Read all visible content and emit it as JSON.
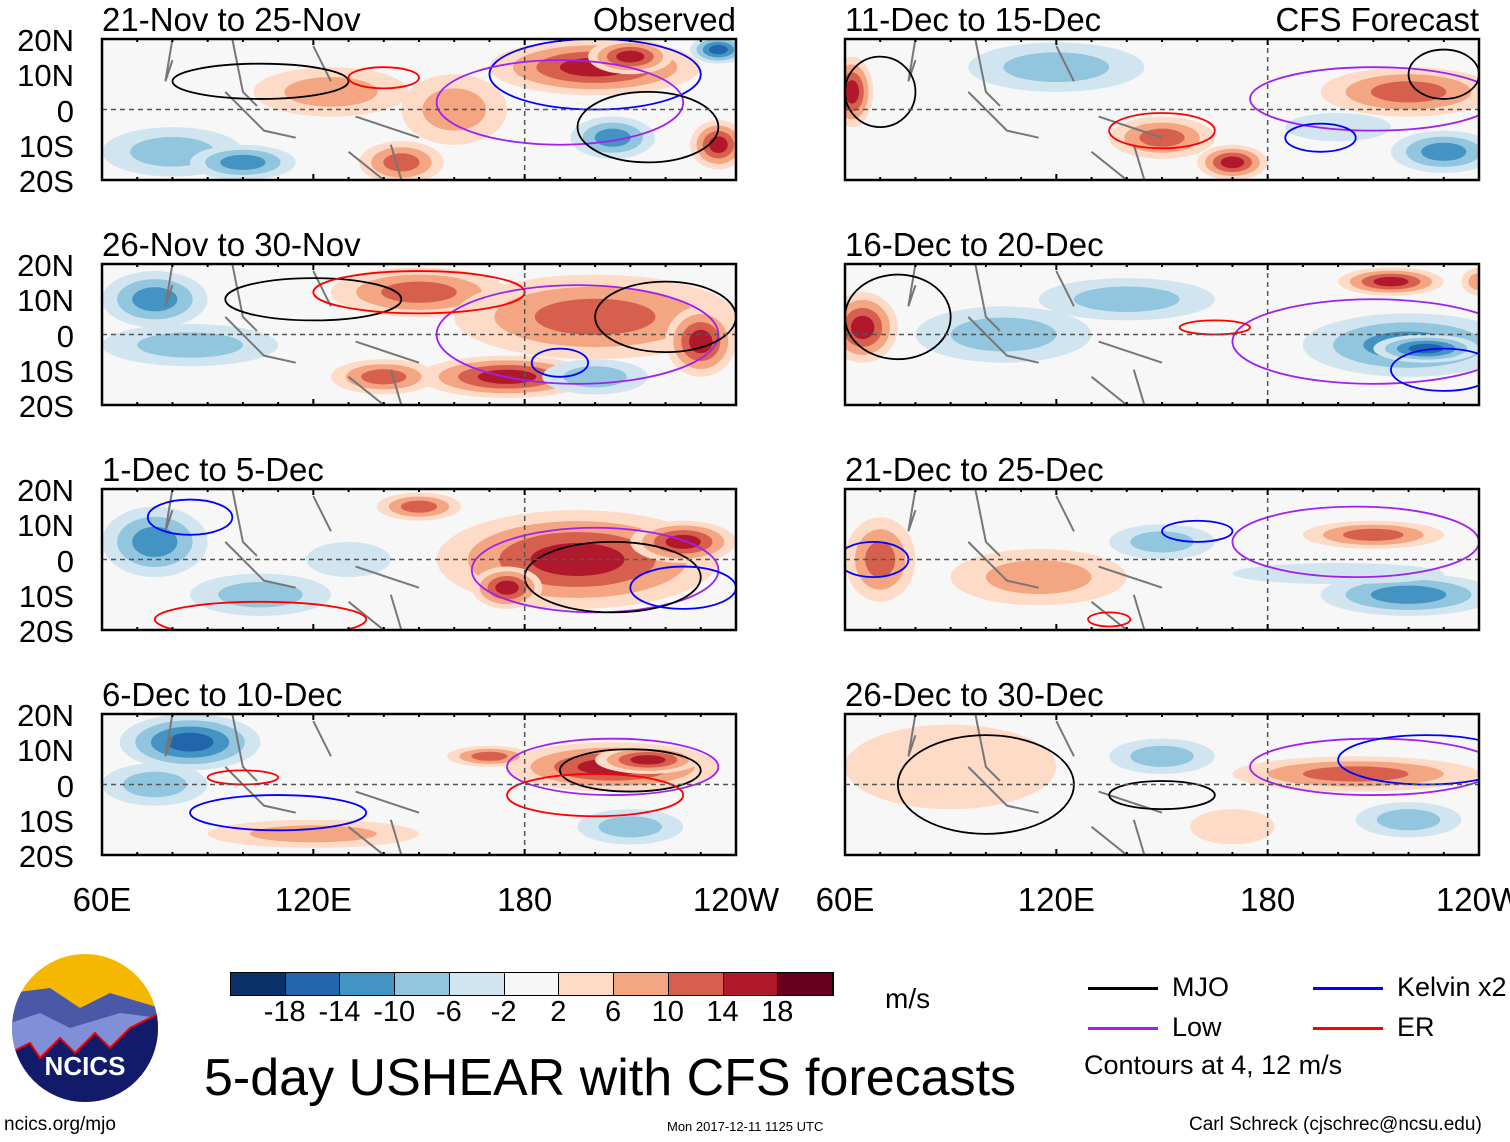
{
  "title": "5-day USHEAR with CFS forecasts",
  "observed_label": "Observed",
  "forecast_label": "CFS Forecast",
  "lat_labels": [
    "20N",
    "10N",
    "0",
    "10S",
    "20S"
  ],
  "lon_labels": [
    "60E",
    "120E",
    "180",
    "120W"
  ],
  "colorbar": {
    "colors": [
      "#0a3268",
      "#2166ac",
      "#4393c3",
      "#92c5de",
      "#d1e5f0",
      "#f7f7f7",
      "#fddbc7",
      "#f4a582",
      "#d6604d",
      "#b2182b",
      "#67001f"
    ],
    "labels": [
      "-18",
      "-14",
      "-10",
      "-6",
      "-2",
      "2",
      "6",
      "10",
      "14",
      "18"
    ],
    "units": "m/s"
  },
  "legend": {
    "items": [
      {
        "label": "MJO",
        "color": "#000000"
      },
      {
        "label": "Kelvin x2",
        "color": "#0000ff"
      },
      {
        "label": "Low",
        "color": "#a020f0"
      },
      {
        "label": "ER",
        "color": "#ff0000"
      }
    ],
    "note": "Contours at 4, 12 m/s"
  },
  "footer": {
    "left": "ncics.org/mjo",
    "center": "Mon 2017-12-11 1125 UTC",
    "right": "Carl Schreck (cjschrec@ncsu.edu)",
    "logo_text": "NCICS"
  },
  "panels": [
    {
      "title": "21-Nov to 25-Nov",
      "col": 0,
      "row": 0,
      "blobs": [
        [
          80,
          -12,
          20,
          7,
          -8
        ],
        [
          100,
          -15,
          15,
          5,
          -10
        ],
        [
          125,
          5,
          22,
          7,
          8
        ],
        [
          145,
          -15,
          12,
          6,
          10
        ],
        [
          200,
          12,
          30,
          8,
          16
        ],
        [
          210,
          15,
          12,
          5,
          20
        ],
        [
          235,
          17,
          8,
          4,
          -18
        ],
        [
          205,
          -8,
          12,
          6,
          -12
        ],
        [
          235,
          -10,
          8,
          7,
          16
        ],
        [
          160,
          0,
          15,
          10,
          6
        ]
      ],
      "contours": [
        [
          105,
          8,
          25,
          5,
          "#000"
        ],
        [
          200,
          10,
          30,
          10,
          "#00f"
        ],
        [
          190,
          2,
          35,
          12,
          "#a020f0"
        ],
        [
          215,
          -5,
          20,
          10,
          "#000"
        ],
        [
          140,
          9,
          10,
          3,
          "#f00"
        ]
      ]
    },
    {
      "title": "26-Nov to 30-Nov",
      "col": 0,
      "row": 0,
      "blobs": [
        [
          75,
          10,
          15,
          8,
          -10
        ],
        [
          85,
          -3,
          25,
          6,
          -6
        ],
        [
          150,
          12,
          25,
          7,
          10
        ],
        [
          200,
          5,
          40,
          12,
          12
        ],
        [
          175,
          -12,
          25,
          6,
          16
        ],
        [
          230,
          -2,
          10,
          10,
          18
        ],
        [
          140,
          -12,
          15,
          5,
          10
        ],
        [
          200,
          -12,
          15,
          5,
          -6
        ]
      ],
      "contours": [
        [
          120,
          10,
          25,
          6,
          "#000"
        ],
        [
          195,
          0,
          40,
          14,
          "#a020f0"
        ],
        [
          150,
          12,
          30,
          6,
          "#f00"
        ],
        [
          190,
          -8,
          8,
          4,
          "#00f"
        ],
        [
          220,
          5,
          20,
          10,
          "#000"
        ]
      ]
    },
    {
      "title": "1-Dec to 5-Dec",
      "col": 0,
      "row": 0,
      "blobs": [
        [
          75,
          5,
          15,
          10,
          -12
        ],
        [
          105,
          -10,
          20,
          6,
          -8
        ],
        [
          150,
          15,
          12,
          4,
          10
        ],
        [
          195,
          0,
          40,
          14,
          14
        ],
        [
          175,
          -8,
          10,
          6,
          20
        ],
        [
          225,
          5,
          15,
          6,
          18
        ],
        [
          130,
          0,
          12,
          5,
          -4
        ]
      ],
      "contours": [
        [
          200,
          -3,
          35,
          12,
          "#a020f0"
        ],
        [
          205,
          -5,
          25,
          10,
          "#000"
        ],
        [
          85,
          12,
          12,
          5,
          "#00f"
        ],
        [
          105,
          -17,
          30,
          5,
          "#f00"
        ],
        [
          225,
          -8,
          15,
          6,
          "#00f"
        ]
      ]
    },
    {
      "title": "6-Dec to 10-Dec",
      "col": 0,
      "row": 0,
      "blobs": [
        [
          85,
          12,
          20,
          8,
          -14
        ],
        [
          75,
          0,
          15,
          6,
          -6
        ],
        [
          205,
          5,
          30,
          7,
          14
        ],
        [
          215,
          7,
          15,
          4,
          20
        ],
        [
          170,
          8,
          12,
          3,
          10
        ],
        [
          210,
          -12,
          15,
          5,
          -6
        ],
        [
          120,
          -14,
          30,
          4,
          6
        ]
      ],
      "contours": [
        [
          205,
          5,
          30,
          8,
          "#a020f0"
        ],
        [
          210,
          4,
          20,
          6,
          "#000"
        ],
        [
          100,
          2,
          10,
          2,
          "#f00"
        ],
        [
          110,
          -8,
          25,
          5,
          "#00f"
        ],
        [
          200,
          -3,
          25,
          6,
          "#f00"
        ]
      ]
    },
    {
      "title": "11-Dec to 15-Dec",
      "col": 1,
      "row": 0,
      "blobs": [
        [
          62,
          5,
          6,
          10,
          14
        ],
        [
          120,
          12,
          25,
          7,
          -8
        ],
        [
          150,
          -8,
          15,
          6,
          10
        ],
        [
          170,
          -15,
          10,
          5,
          16
        ],
        [
          220,
          5,
          25,
          7,
          10
        ],
        [
          230,
          -12,
          15,
          6,
          -10
        ],
        [
          200,
          -5,
          15,
          4,
          -4
        ]
      ],
      "contours": [
        [
          210,
          3,
          35,
          9,
          "#a020f0"
        ],
        [
          70,
          5,
          10,
          10,
          "#000"
        ],
        [
          150,
          -6,
          15,
          5,
          "#f00"
        ],
        [
          195,
          -8,
          10,
          4,
          "#00f"
        ],
        [
          230,
          10,
          10,
          7,
          "#000"
        ]
      ]
    },
    {
      "title": "16-Dec to 20-Dec",
      "col": 1,
      "row": 0,
      "blobs": [
        [
          65,
          2,
          10,
          10,
          18
        ],
        [
          105,
          0,
          25,
          8,
          -8
        ],
        [
          140,
          10,
          25,
          6,
          -8
        ],
        [
          220,
          -3,
          30,
          9,
          -10
        ],
        [
          225,
          -4,
          15,
          4,
          -18
        ],
        [
          215,
          15,
          15,
          4,
          14
        ],
        [
          240,
          15,
          5,
          4,
          8
        ]
      ],
      "contours": [
        [
          210,
          -2,
          40,
          12,
          "#a020f0"
        ],
        [
          75,
          5,
          15,
          12,
          "#000"
        ],
        [
          165,
          2,
          10,
          2,
          "#f00"
        ],
        [
          230,
          -10,
          15,
          6,
          "#00f"
        ]
      ]
    },
    {
      "title": "21-Dec to 25-Dec",
      "col": 1,
      "row": 0,
      "blobs": [
        [
          70,
          0,
          10,
          12,
          10
        ],
        [
          115,
          -5,
          25,
          8,
          6
        ],
        [
          150,
          5,
          15,
          5,
          -6
        ],
        [
          210,
          7,
          20,
          4,
          10
        ],
        [
          220,
          -10,
          25,
          6,
          -12
        ],
        [
          200,
          -4,
          30,
          3,
          -4
        ]
      ],
      "contours": [
        [
          205,
          5,
          35,
          10,
          "#a020f0"
        ],
        [
          160,
          8,
          10,
          3,
          "#00f"
        ],
        [
          68,
          0,
          10,
          5,
          "#00f"
        ],
        [
          135,
          -17,
          6,
          2,
          "#f00"
        ]
      ]
    },
    {
      "title": "26-Dec to 30-Dec",
      "col": 1,
      "row": 0,
      "blobs": [
        [
          90,
          5,
          30,
          12,
          4
        ],
        [
          150,
          8,
          15,
          5,
          -6
        ],
        [
          205,
          3,
          35,
          5,
          10
        ],
        [
          220,
          -10,
          15,
          5,
          -6
        ],
        [
          170,
          -12,
          12,
          5,
          4
        ]
      ],
      "contours": [
        [
          210,
          5,
          35,
          8,
          "#a020f0"
        ],
        [
          225,
          7,
          25,
          7,
          "#00f"
        ],
        [
          100,
          0,
          25,
          14,
          "#000"
        ],
        [
          150,
          -3,
          15,
          4,
          "#000"
        ]
      ]
    }
  ]
}
